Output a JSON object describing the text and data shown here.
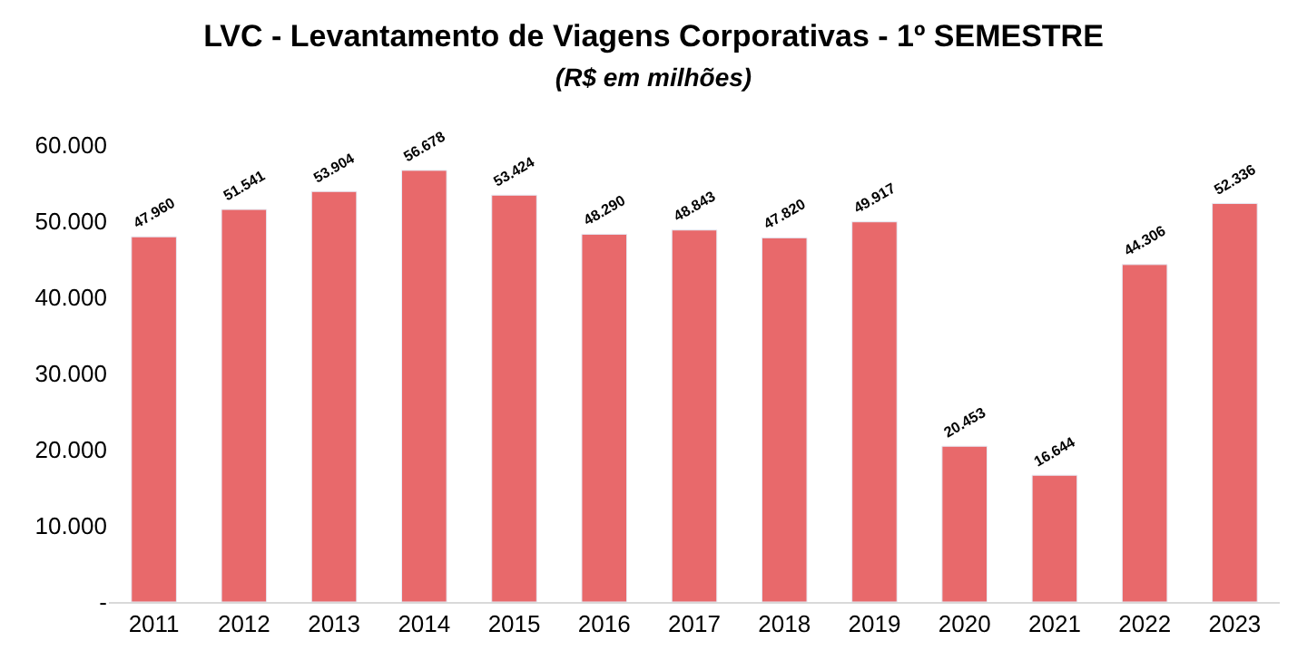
{
  "chart_data": {
    "type": "bar",
    "title": "LVC - Levantamento de Viagens Corporativas - 1º SEMESTRE",
    "subtitle": "(R$ em milhões)",
    "categories": [
      "2011",
      "2012",
      "2013",
      "2014",
      "2015",
      "2016",
      "2017",
      "2018",
      "2019",
      "2020",
      "2021",
      "2022",
      "2023"
    ],
    "values": [
      47960,
      51541,
      53904,
      56678,
      53424,
      48290,
      48843,
      47820,
      49917,
      20453,
      16644,
      44306,
      52336
    ],
    "value_labels": [
      "47.960",
      "51.541",
      "53.904",
      "56.678",
      "53.424",
      "48.290",
      "48.843",
      "47.820",
      "49.917",
      "20.453",
      "16.644",
      "44.306",
      "52.336"
    ],
    "color": "#e8696b",
    "ylim": [
      0,
      60000
    ],
    "yticks": [
      {
        "value": 0,
        "label": "-"
      },
      {
        "value": 10000,
        "label": "10.000"
      },
      {
        "value": 20000,
        "label": "20.000"
      },
      {
        "value": 30000,
        "label": "30.000"
      },
      {
        "value": 40000,
        "label": "40.000"
      },
      {
        "value": 50000,
        "label": "50.000"
      },
      {
        "value": 60000,
        "label": "60.000"
      }
    ],
    "legend": false
  }
}
